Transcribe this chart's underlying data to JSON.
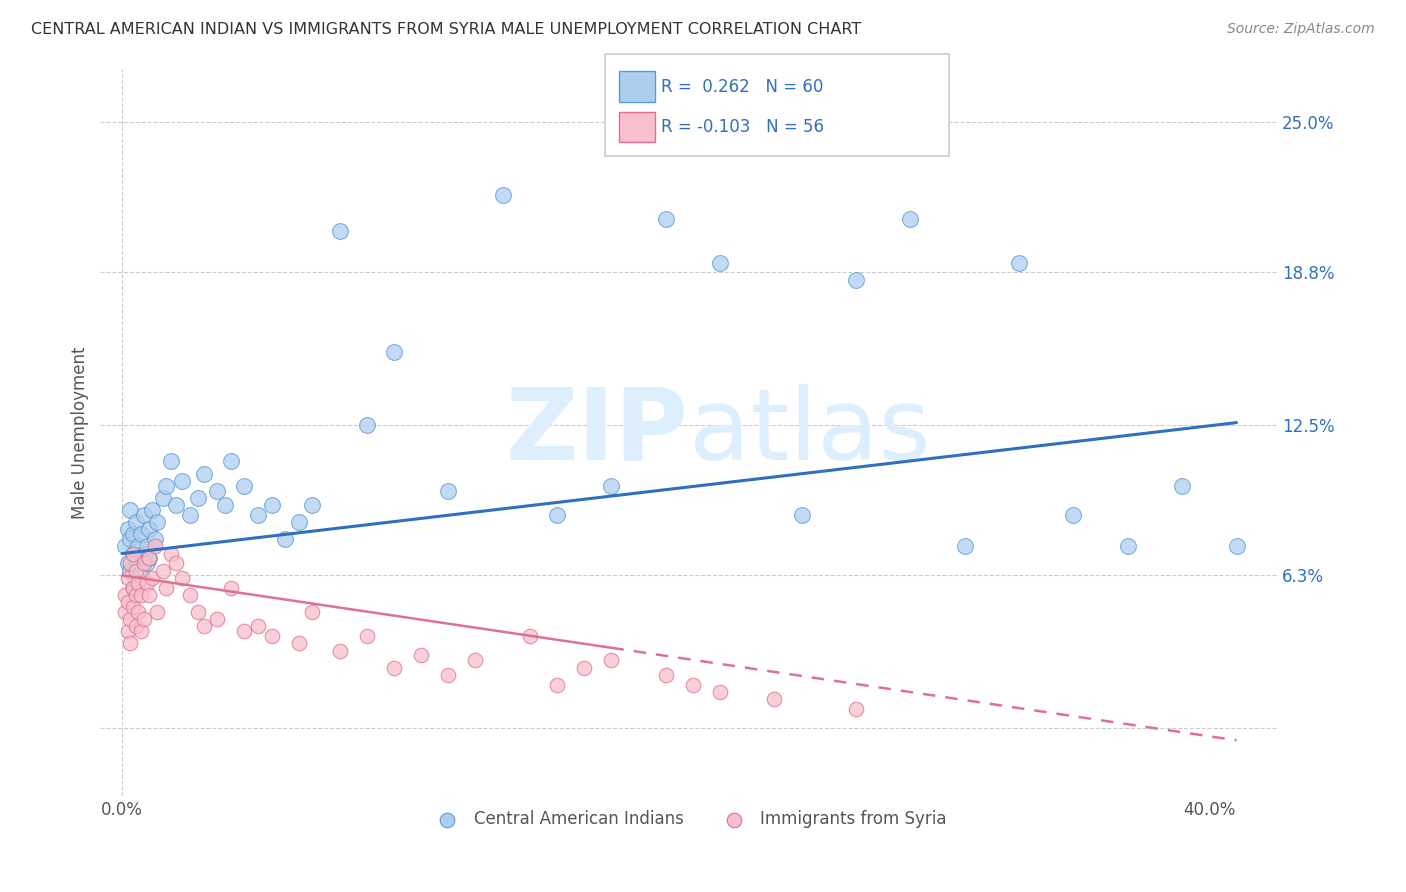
{
  "title": "CENTRAL AMERICAN INDIAN VS IMMIGRANTS FROM SYRIA MALE UNEMPLOYMENT CORRELATION CHART",
  "source": "Source: ZipAtlas.com",
  "ylabel": "Male Unemployment",
  "yticks": [
    0.0,
    0.063,
    0.125,
    0.188,
    0.25
  ],
  "ytick_labels": [
    "",
    "6.3%",
    "12.5%",
    "18.8%",
    "25.0%"
  ],
  "xticks": [
    0.0,
    0.1,
    0.2,
    0.3,
    0.4
  ],
  "xtick_labels_display": [
    "0.0%",
    "",
    "",
    "",
    "40.0%"
  ],
  "xlim": [
    -0.008,
    0.425
  ],
  "ylim": [
    -0.028,
    0.272
  ],
  "blue_R": "0.262",
  "blue_N": "60",
  "pink_R": "-0.103",
  "pink_N": "56",
  "blue_color": "#aecef0",
  "blue_edge": "#5b9bd5",
  "pink_color": "#f8bfcc",
  "pink_edge": "#e07090",
  "trend_blue": "#3070c0",
  "trend_pink": "#e07090",
  "watermark_zip": "ZIP",
  "watermark_atlas": "atlas",
  "watermark_color": "#ddeeff",
  "blue_label": "Central American Indians",
  "pink_label": "Immigrants from Syria",
  "blue_x": [
    0.001,
    0.002,
    0.002,
    0.003,
    0.003,
    0.003,
    0.004,
    0.004,
    0.004,
    0.005,
    0.005,
    0.005,
    0.006,
    0.006,
    0.007,
    0.007,
    0.008,
    0.008,
    0.009,
    0.009,
    0.01,
    0.01,
    0.011,
    0.012,
    0.013,
    0.015,
    0.016,
    0.018,
    0.02,
    0.022,
    0.025,
    0.028,
    0.03,
    0.035,
    0.038,
    0.04,
    0.045,
    0.05,
    0.055,
    0.06,
    0.065,
    0.07,
    0.08,
    0.09,
    0.1,
    0.12,
    0.14,
    0.16,
    0.18,
    0.2,
    0.22,
    0.25,
    0.27,
    0.29,
    0.31,
    0.33,
    0.35,
    0.37,
    0.39,
    0.41
  ],
  "blue_y": [
    0.075,
    0.068,
    0.082,
    0.065,
    0.078,
    0.09,
    0.072,
    0.08,
    0.058,
    0.07,
    0.085,
    0.06,
    0.075,
    0.068,
    0.08,
    0.065,
    0.088,
    0.072,
    0.075,
    0.068,
    0.082,
    0.07,
    0.09,
    0.078,
    0.085,
    0.095,
    0.1,
    0.11,
    0.092,
    0.102,
    0.088,
    0.095,
    0.105,
    0.098,
    0.092,
    0.11,
    0.1,
    0.088,
    0.092,
    0.078,
    0.085,
    0.092,
    0.205,
    0.125,
    0.155,
    0.098,
    0.22,
    0.088,
    0.1,
    0.21,
    0.192,
    0.088,
    0.185,
    0.21,
    0.075,
    0.192,
    0.088,
    0.075,
    0.1,
    0.075
  ],
  "pink_x": [
    0.001,
    0.001,
    0.002,
    0.002,
    0.002,
    0.003,
    0.003,
    0.003,
    0.004,
    0.004,
    0.004,
    0.005,
    0.005,
    0.005,
    0.006,
    0.006,
    0.007,
    0.007,
    0.008,
    0.008,
    0.009,
    0.01,
    0.01,
    0.011,
    0.012,
    0.013,
    0.015,
    0.016,
    0.018,
    0.02,
    0.022,
    0.025,
    0.028,
    0.03,
    0.035,
    0.04,
    0.045,
    0.05,
    0.055,
    0.065,
    0.07,
    0.08,
    0.09,
    0.1,
    0.11,
    0.12,
    0.13,
    0.15,
    0.16,
    0.17,
    0.18,
    0.2,
    0.21,
    0.22,
    0.24,
    0.27
  ],
  "pink_y": [
    0.048,
    0.055,
    0.04,
    0.052,
    0.062,
    0.035,
    0.045,
    0.068,
    0.05,
    0.058,
    0.072,
    0.042,
    0.055,
    0.065,
    0.048,
    0.06,
    0.04,
    0.055,
    0.068,
    0.045,
    0.06,
    0.055,
    0.07,
    0.062,
    0.075,
    0.048,
    0.065,
    0.058,
    0.072,
    0.068,
    0.062,
    0.055,
    0.048,
    0.042,
    0.045,
    0.058,
    0.04,
    0.042,
    0.038,
    0.035,
    0.048,
    0.032,
    0.038,
    0.025,
    0.03,
    0.022,
    0.028,
    0.038,
    0.018,
    0.025,
    0.028,
    0.022,
    0.018,
    0.015,
    0.012,
    0.008
  ]
}
